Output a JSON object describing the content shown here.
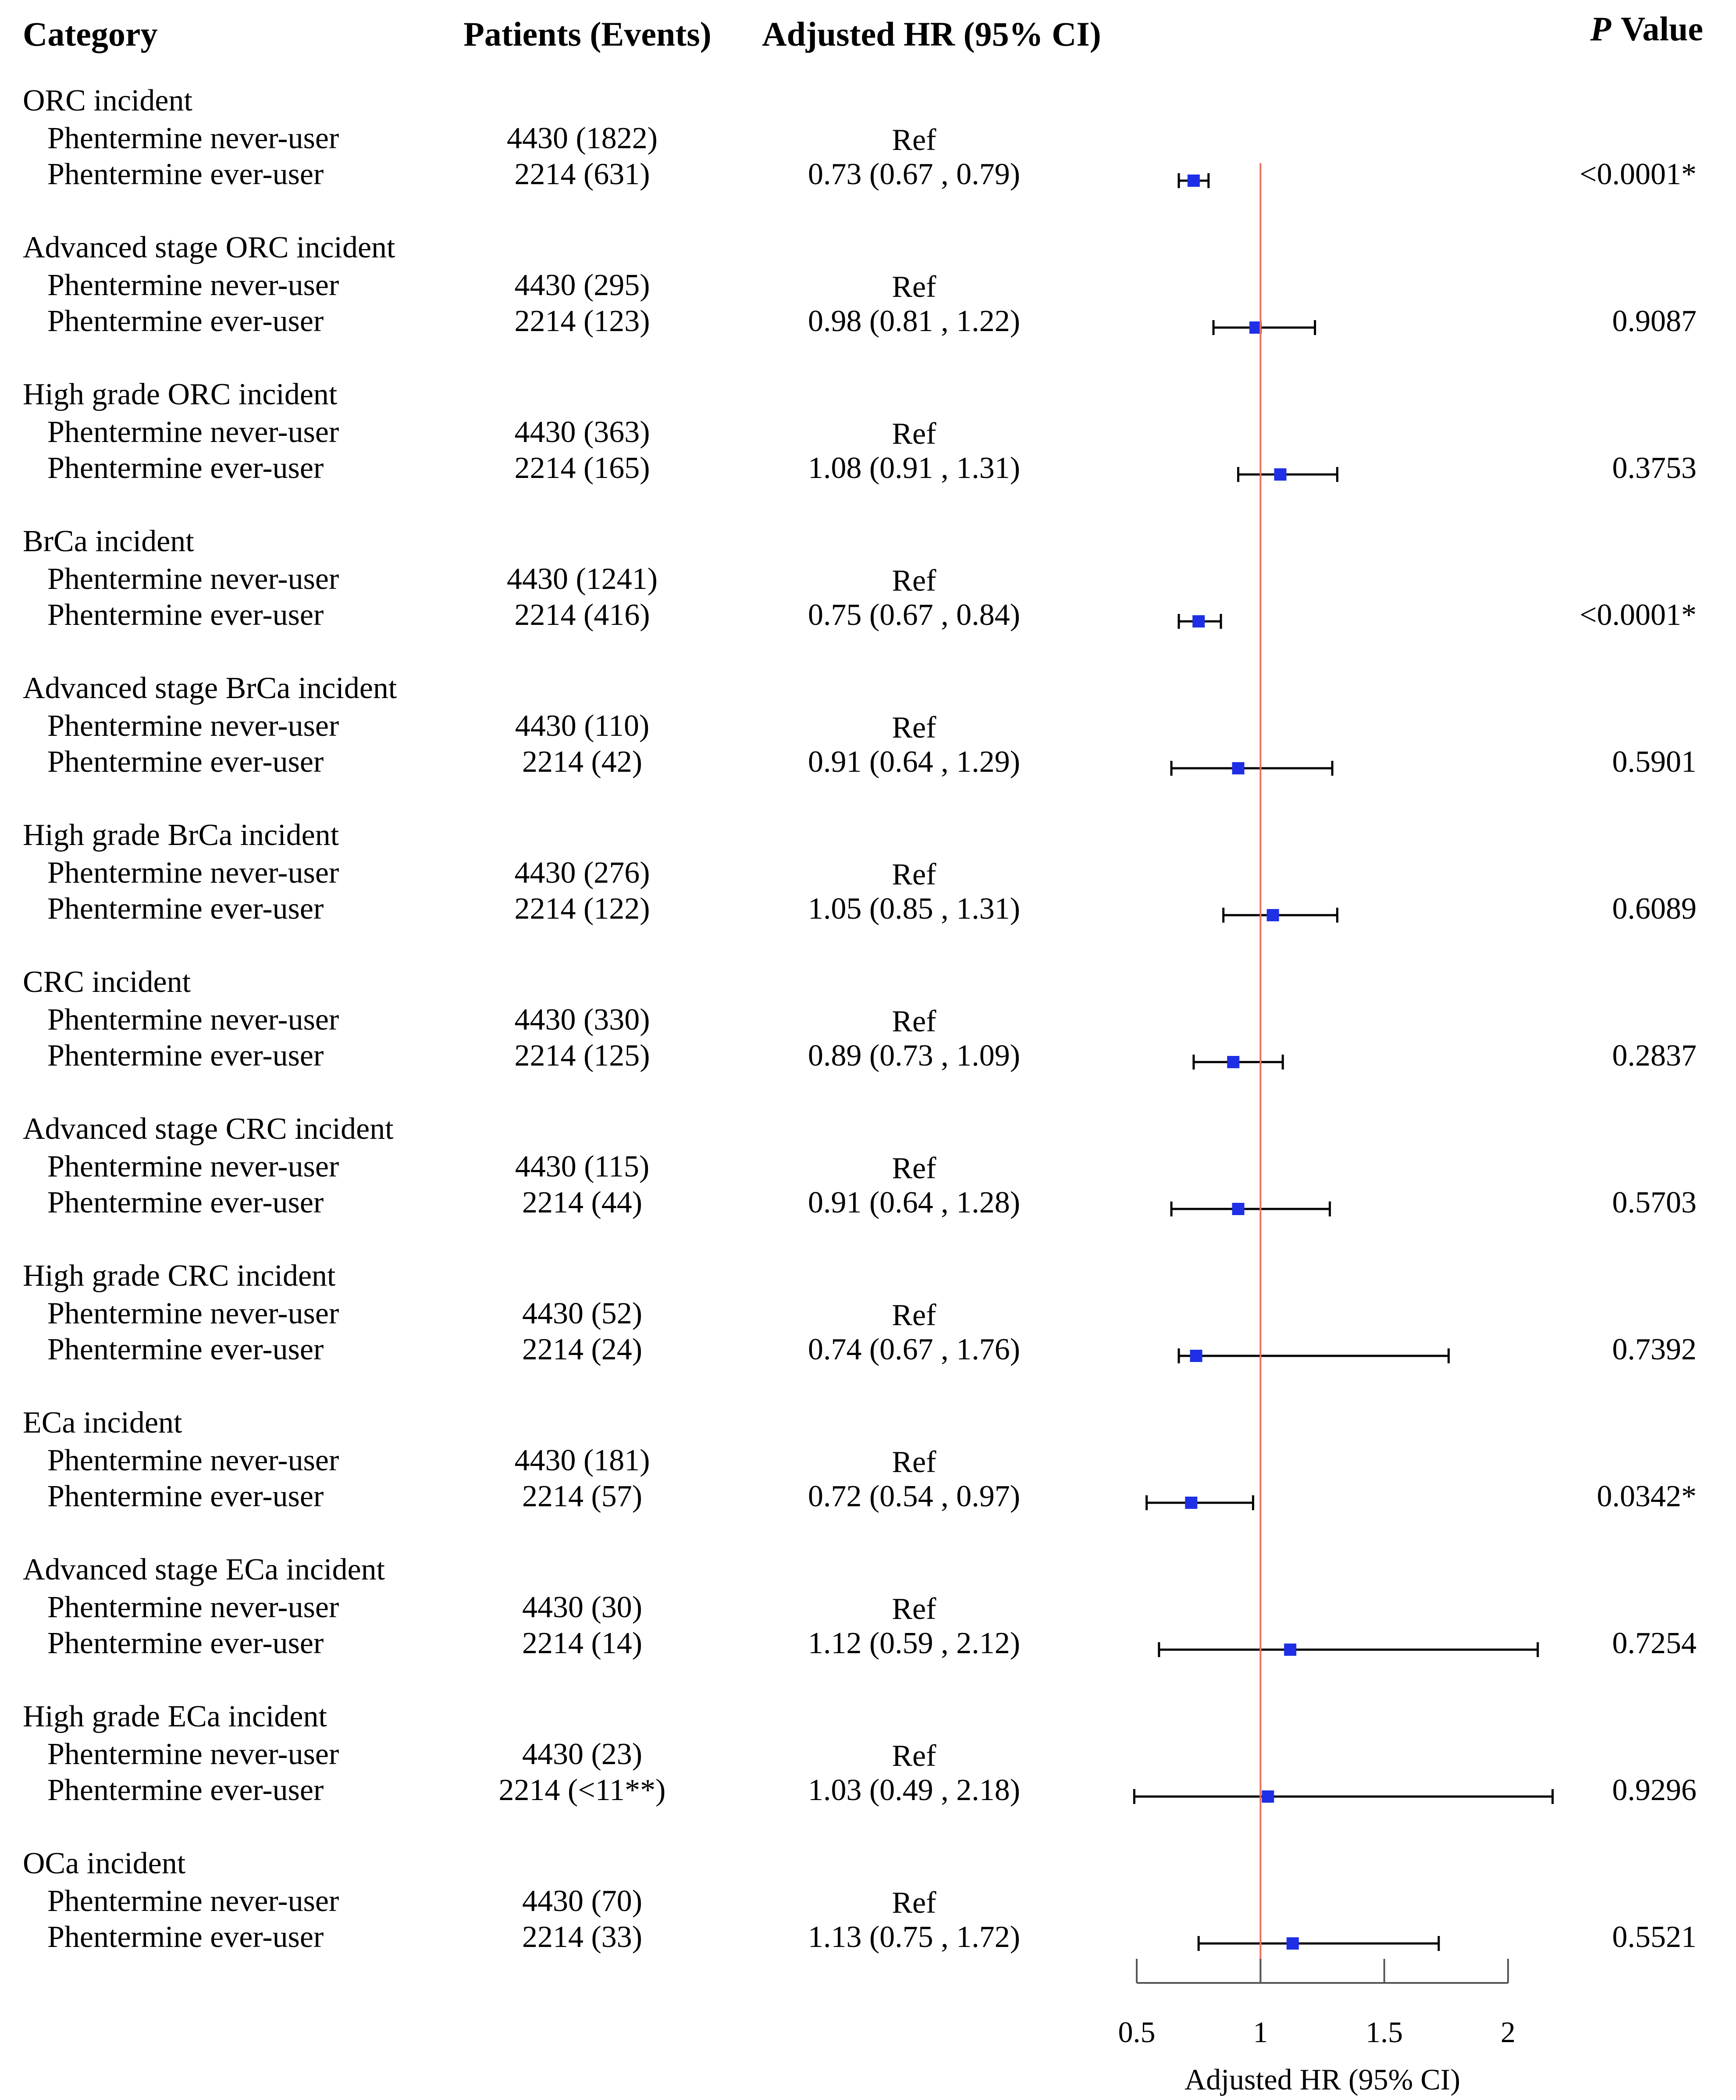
{
  "headers": {
    "category": "Category",
    "patients": "Patients (Events)",
    "hr": "Adjusted HR (95% CI)",
    "p_italic": "P",
    "p_rest": "Value"
  },
  "labels": {
    "never": "Phentermine never-user",
    "ever": "Phentermine ever-user",
    "ref": "Ref"
  },
  "chart_data": {
    "type": "forest",
    "xlabel": "Adjusted HR (95% CI)",
    "xlim": [
      0.5,
      2.0
    ],
    "xticks": [
      0.5,
      1,
      1.5,
      2
    ],
    "xtick_labels": [
      "0.5",
      "1",
      "1.5",
      "2"
    ],
    "reference_line": 1,
    "colors": {
      "marker": "#1f2fe6",
      "reference": "#e8735e",
      "whisker": "#000000"
    },
    "groups": [
      {
        "category": "ORC incident",
        "never_n": "4430 (1822)",
        "ever_n": "2214 (631)",
        "hr_text": "0.73 (0.67 , 0.79)",
        "hr": 0.73,
        "lo": 0.67,
        "hi": 0.79,
        "p": "<0.0001*"
      },
      {
        "category": "Advanced stage ORC incident",
        "never_n": "4430 (295)",
        "ever_n": "2214 (123)",
        "hr_text": "0.98 (0.81 , 1.22)",
        "hr": 0.98,
        "lo": 0.81,
        "hi": 1.22,
        "p": "0.9087"
      },
      {
        "category": "High grade ORC incident",
        "never_n": "4430 (363)",
        "ever_n": "2214 (165)",
        "hr_text": "1.08 (0.91 , 1.31)",
        "hr": 1.08,
        "lo": 0.91,
        "hi": 1.31,
        "p": "0.3753"
      },
      {
        "category": "BrCa incident",
        "never_n": "4430 (1241)",
        "ever_n": "2214 (416)",
        "hr_text": "0.75 (0.67 , 0.84)",
        "hr": 0.75,
        "lo": 0.67,
        "hi": 0.84,
        "p": "<0.0001*"
      },
      {
        "category": "Advanced stage BrCa incident",
        "never_n": "4430 (110)",
        "ever_n": "2214 (42)",
        "hr_text": "0.91 (0.64 , 1.29)",
        "hr": 0.91,
        "lo": 0.64,
        "hi": 1.29,
        "p": "0.5901"
      },
      {
        "category": "High grade BrCa incident",
        "never_n": "4430 (276)",
        "ever_n": "2214 (122)",
        "hr_text": "1.05 (0.85 , 1.31)",
        "hr": 1.05,
        "lo": 0.85,
        "hi": 1.31,
        "p": "0.6089"
      },
      {
        "category": "CRC incident",
        "never_n": "4430 (330)",
        "ever_n": "2214 (125)",
        "hr_text": "0.89 (0.73 , 1.09)",
        "hr": 0.89,
        "lo": 0.73,
        "hi": 1.09,
        "p": "0.2837"
      },
      {
        "category": "Advanced stage CRC incident",
        "never_n": "4430 (115)",
        "ever_n": "2214 (44)",
        "hr_text": "0.91 (0.64 , 1.28)",
        "hr": 0.91,
        "lo": 0.64,
        "hi": 1.28,
        "p": "0.5703"
      },
      {
        "category": "High grade CRC incident",
        "never_n": "4430 (52)",
        "ever_n": "2214 (24)",
        "hr_text": "0.74 (0.67 , 1.76)",
        "hr": 0.74,
        "lo": 0.67,
        "hi": 1.76,
        "p": "0.7392"
      },
      {
        "category": "ECa incident",
        "never_n": "4430 (181)",
        "ever_n": "2214 (57)",
        "hr_text": "0.72 (0.54 , 0.97)",
        "hr": 0.72,
        "lo": 0.54,
        "hi": 0.97,
        "p": "0.0342*"
      },
      {
        "category": "Advanced stage ECa incident",
        "never_n": "4430 (30)",
        "ever_n": "2214 (14)",
        "hr_text": "1.12 (0.59 , 2.12)",
        "hr": 1.12,
        "lo": 0.59,
        "hi": 2.12,
        "p": "0.7254"
      },
      {
        "category": "High grade ECa incident",
        "never_n": "4430 (23)",
        "ever_n": "2214 (<11**)",
        "hr_text": "1.03 (0.49 , 2.18)",
        "hr": 1.03,
        "lo": 0.49,
        "hi": 2.18,
        "p": "0.9296"
      },
      {
        "category": "OCa incident",
        "never_n": "4430 (70)",
        "ever_n": "2214 (33)",
        "hr_text": "1.13 (0.75 , 1.72)",
        "hr": 1.13,
        "lo": 0.75,
        "hi": 1.72,
        "p": "0.5521"
      }
    ]
  }
}
